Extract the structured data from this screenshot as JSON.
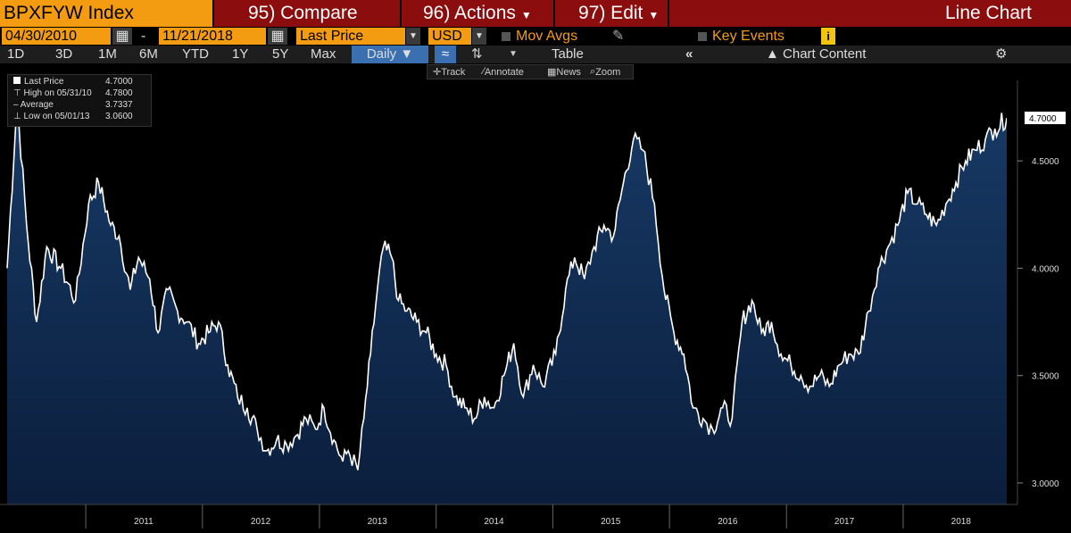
{
  "header": {
    "ticker": "BPXFYW Index",
    "compare": "95) Compare",
    "actions": "96) Actions",
    "edit": "97) Edit",
    "chart_type": "Line Chart"
  },
  "settings": {
    "start_date": "04/30/2010",
    "dash": "-",
    "end_date": "11/21/2018",
    "field": "Last Price",
    "currency": "USD",
    "mov_avgs": "Mov Avgs",
    "key_events": "Key Events",
    "info": "i"
  },
  "periods": [
    "1D",
    "3D",
    "1M",
    "6M",
    "YTD",
    "1Y",
    "5Y",
    "Max"
  ],
  "frequency": "Daily",
  "table_label": "Table",
  "chart_content_label": "Chart Content",
  "tools": {
    "track": "Track",
    "annotate": "Annotate",
    "news": "News",
    "zoom": "Zoom"
  },
  "legend": {
    "last_label": "Last Price",
    "last_value": "4.7000",
    "high_label": "High on 05/31/10",
    "high_value": "4.7800",
    "avg_label": "Average",
    "avg_value": "3.7337",
    "low_label": "Low on 05/01/13",
    "low_value": "3.0600"
  },
  "colors": {
    "header_bg": "#8b0d0d",
    "accent": "#f39c12",
    "area_top": "#173a66",
    "area_bottom": "#0b1e3c",
    "line": "#ffffff"
  },
  "chart_data": {
    "type": "area",
    "x_start": "2010-04-30",
    "x_end": "2018-11-21",
    "ylim": [
      2.9,
      4.85
    ],
    "y_ticks": [
      "3.0000",
      "3.5000",
      "4.0000",
      "4.5000"
    ],
    "last_label": "4.7000",
    "x_tick_labels": [
      "2011",
      "2012",
      "2013",
      "2014",
      "2015",
      "2016",
      "2017",
      "2018"
    ],
    "series": [
      {
        "x": [
          "2010-04-30",
          "2010-05-31",
          "2010-06-30",
          "2010-07-31",
          "2010-09-01",
          "2010-10-15",
          "2010-11-30",
          "2011-01-10",
          "2011-02-10",
          "2011-03-20",
          "2011-04-15",
          "2011-05-20",
          "2011-06-15",
          "2011-07-20",
          "2011-08-15",
          "2011-09-15",
          "2011-10-15",
          "2011-11-15",
          "2011-12-20",
          "2012-01-20",
          "2012-02-20",
          "2012-03-20",
          "2012-04-20",
          "2012-05-20",
          "2012-06-20",
          "2012-07-20",
          "2012-08-20",
          "2012-09-20",
          "2012-10-20",
          "2012-11-20",
          "2012-12-20",
          "2013-01-15",
          "2013-02-15",
          "2013-03-15",
          "2013-04-01",
          "2013-05-01",
          "2013-05-20",
          "2013-06-10",
          "2013-07-01",
          "2013-07-20",
          "2013-08-15",
          "2013-09-05",
          "2013-10-01",
          "2013-11-01",
          "2013-12-01",
          "2014-01-01",
          "2014-02-01",
          "2014-03-01",
          "2014-04-01",
          "2014-05-01",
          "2014-06-01",
          "2014-07-01",
          "2014-08-01",
          "2014-09-01",
          "2014-10-01",
          "2014-11-01",
          "2014-12-01",
          "2015-01-10",
          "2015-02-10",
          "2015-03-10",
          "2015-04-10",
          "2015-05-10",
          "2015-06-10",
          "2015-07-10",
          "2015-08-10",
          "2015-09-10",
          "2015-10-10",
          "2015-11-15",
          "2015-12-15",
          "2016-01-15",
          "2016-02-15",
          "2016-03-15",
          "2016-04-15",
          "2016-05-15",
          "2016-06-15",
          "2016-07-15",
          "2016-08-15",
          "2016-09-15",
          "2016-10-15",
          "2016-11-15",
          "2016-12-15",
          "2017-01-15",
          "2017-02-15",
          "2017-03-15",
          "2017-04-15",
          "2017-05-15",
          "2017-06-15",
          "2017-07-15",
          "2017-08-15",
          "2017-09-15",
          "2017-10-15",
          "2017-11-15",
          "2017-12-15",
          "2018-01-15",
          "2018-02-15",
          "2018-03-15",
          "2018-04-15",
          "2018-05-15",
          "2018-06-15",
          "2018-07-15",
          "2018-08-15",
          "2018-09-15",
          "2018-10-15",
          "2018-11-21"
        ],
        "values": [
          4.0,
          4.78,
          4.2,
          3.75,
          4.1,
          4.0,
          3.85,
          4.3,
          4.4,
          4.2,
          4.15,
          3.9,
          4.05,
          3.95,
          3.7,
          3.9,
          3.8,
          3.75,
          3.65,
          3.7,
          3.75,
          3.55,
          3.4,
          3.35,
          3.25,
          3.15,
          3.2,
          3.18,
          3.22,
          3.3,
          3.25,
          3.35,
          3.2,
          3.1,
          3.15,
          3.06,
          3.3,
          3.6,
          3.9,
          4.1,
          4.05,
          3.85,
          3.8,
          3.75,
          3.7,
          3.6,
          3.55,
          3.4,
          3.35,
          3.3,
          3.4,
          3.35,
          3.5,
          3.65,
          3.4,
          3.55,
          3.45,
          3.6,
          3.9,
          4.05,
          3.95,
          4.1,
          4.2,
          4.15,
          4.4,
          4.6,
          4.55,
          4.3,
          3.9,
          3.7,
          3.6,
          3.35,
          3.3,
          3.25,
          3.35,
          3.3,
          3.75,
          3.85,
          3.7,
          3.75,
          3.6,
          3.55,
          3.5,
          3.45,
          3.5,
          3.45,
          3.55,
          3.6,
          3.6,
          3.8,
          4.0,
          4.1,
          4.2,
          4.35,
          4.3,
          4.25,
          4.2,
          4.3,
          4.4,
          4.5,
          4.55,
          4.6,
          4.65,
          4.7
        ]
      }
    ]
  }
}
